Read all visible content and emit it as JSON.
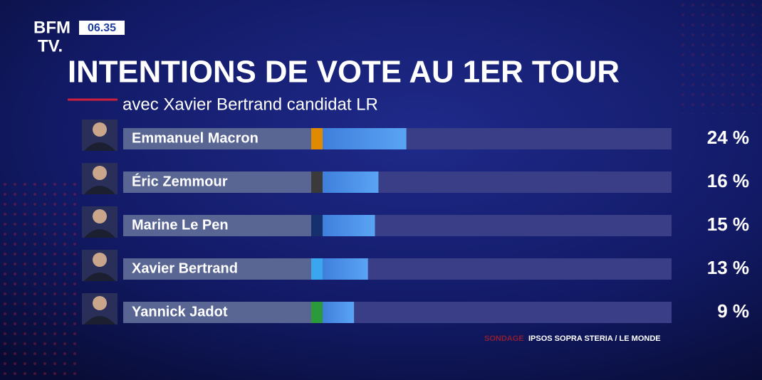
{
  "logo": {
    "line1": "BFM",
    "line2": "TV."
  },
  "clock": "06.35",
  "chart_data": {
    "type": "bar",
    "orientation": "horizontal",
    "title": "INTENTIONS DE VOTE AU 1ER TOUR",
    "subtitle": "avec Xavier Bertrand candidat LR",
    "categories": [
      "Emmanuel Macron",
      "Éric Zemmour",
      "Marine Le Pen",
      "Xavier Bertrand",
      "Yannick Jadot"
    ],
    "values": [
      24,
      16,
      15,
      13,
      9
    ],
    "value_labels": [
      "24 %",
      "16 %",
      "15 %",
      "13 %",
      "9 %"
    ],
    "color": "#4a8fe6",
    "colors": [
      "#e08a00",
      "#3a3a3a",
      "#16306e",
      "#3aa6ee",
      "#2a9a3a"
    ],
    "source": {
      "label": "SONDAGE",
      "text": "IPSOS SOPRA STERIA / LE MONDE"
    }
  }
}
